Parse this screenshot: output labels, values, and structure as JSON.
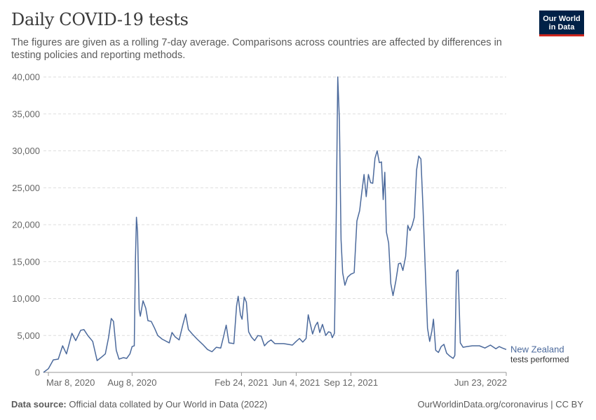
{
  "header": {
    "title": "Daily COVID-19 tests",
    "subtitle": "The figures are given as a rolling 7-day average. Comparisons across countries are affected by differences in testing policies and reporting methods."
  },
  "logo": {
    "line1": "Our World",
    "line2": "in Data"
  },
  "footer": {
    "source_label": "Data source:",
    "source_text": "Official data collated by Our World in Data (2022)",
    "right": "OurWorldinData.org/coronavirus | CC BY"
  },
  "colors": {
    "series": "#4c6a9c",
    "grid": "#dddddd",
    "axis": "#999999",
    "logo_bg": "#002147",
    "logo_accent": "#ce261e"
  },
  "chart_data": {
    "type": "line",
    "title": "Daily COVID-19 tests",
    "ylim": [
      0,
      40000
    ],
    "y_ticks": [
      0,
      5000,
      10000,
      15000,
      20000,
      25000,
      30000,
      35000,
      40000
    ],
    "y_tick_labels": [
      "0",
      "5,000",
      "10,000",
      "15,000",
      "20,000",
      "25,000",
      "30,000",
      "35,000",
      "40,000"
    ],
    "x_range": [
      "2020-02-28",
      "2022-06-23"
    ],
    "x_ticks": [
      {
        "date": "2020-03-08",
        "label": "Mar 8, 2020"
      },
      {
        "date": "2020-08-08",
        "label": "Aug 8, 2020"
      },
      {
        "date": "2021-02-24",
        "label": "Feb 24, 2021"
      },
      {
        "date": "2021-06-04",
        "label": "Jun 4, 2021"
      },
      {
        "date": "2021-09-12",
        "label": "Sep 12, 2021"
      },
      {
        "date": "2022-06-23",
        "label": "Jun 23, 2022"
      }
    ],
    "grid": "horizontal-dashed",
    "series": [
      {
        "name": "New Zealand",
        "label_line2": "tests performed",
        "points": [
          [
            "2020-02-28",
            0
          ],
          [
            "2020-03-08",
            500
          ],
          [
            "2020-03-17",
            1700
          ],
          [
            "2020-03-26",
            1800
          ],
          [
            "2020-04-03",
            3600
          ],
          [
            "2020-04-10",
            2500
          ],
          [
            "2020-04-20",
            5300
          ],
          [
            "2020-04-27",
            4300
          ],
          [
            "2020-05-06",
            5700
          ],
          [
            "2020-05-12",
            5800
          ],
          [
            "2020-05-19",
            5000
          ],
          [
            "2020-05-28",
            4200
          ],
          [
            "2020-06-05",
            1600
          ],
          [
            "2020-06-12",
            2000
          ],
          [
            "2020-06-20",
            2500
          ],
          [
            "2020-06-26",
            4700
          ],
          [
            "2020-07-01",
            7300
          ],
          [
            "2020-07-05",
            6900
          ],
          [
            "2020-07-10",
            3000
          ],
          [
            "2020-07-15",
            1800
          ],
          [
            "2020-07-23",
            2000
          ],
          [
            "2020-07-29",
            1900
          ],
          [
            "2020-08-04",
            2500
          ],
          [
            "2020-08-08",
            3500
          ],
          [
            "2020-08-12",
            3600
          ],
          [
            "2020-08-14",
            15000
          ],
          [
            "2020-08-16",
            21000
          ],
          [
            "2020-08-18",
            19000
          ],
          [
            "2020-08-21",
            8500
          ],
          [
            "2020-08-23",
            7600
          ],
          [
            "2020-08-28",
            9700
          ],
          [
            "2020-09-02",
            8700
          ],
          [
            "2020-09-06",
            7000
          ],
          [
            "2020-09-12",
            6900
          ],
          [
            "2020-09-18",
            6000
          ],
          [
            "2020-09-24",
            5000
          ],
          [
            "2020-10-02",
            4500
          ],
          [
            "2020-10-15",
            4000
          ],
          [
            "2020-10-20",
            5400
          ],
          [
            "2020-10-26",
            4800
          ],
          [
            "2020-11-02",
            4400
          ],
          [
            "2020-11-09",
            6500
          ],
          [
            "2020-11-14",
            7900
          ],
          [
            "2020-11-19",
            5800
          ],
          [
            "2020-11-26",
            5200
          ],
          [
            "2020-12-05",
            4500
          ],
          [
            "2020-12-15",
            3800
          ],
          [
            "2020-12-24",
            3100
          ],
          [
            "2021-01-01",
            2800
          ],
          [
            "2021-01-09",
            3400
          ],
          [
            "2021-01-17",
            3300
          ],
          [
            "2021-01-22",
            4800
          ],
          [
            "2021-01-27",
            6400
          ],
          [
            "2021-02-01",
            4000
          ],
          [
            "2021-02-10",
            3900
          ],
          [
            "2021-02-15",
            9000
          ],
          [
            "2021-02-18",
            10300
          ],
          [
            "2021-02-22",
            7800
          ],
          [
            "2021-02-25",
            7200
          ],
          [
            "2021-03-01",
            10200
          ],
          [
            "2021-03-05",
            9500
          ],
          [
            "2021-03-09",
            5500
          ],
          [
            "2021-03-14",
            4800
          ],
          [
            "2021-03-20",
            4300
          ],
          [
            "2021-03-26",
            5000
          ],
          [
            "2021-04-01",
            4900
          ],
          [
            "2021-04-07",
            3600
          ],
          [
            "2021-04-13",
            4100
          ],
          [
            "2021-04-19",
            4400
          ],
          [
            "2021-04-26",
            3900
          ],
          [
            "2021-05-04",
            3900
          ],
          [
            "2021-05-12",
            3900
          ],
          [
            "2021-05-20",
            3800
          ],
          [
            "2021-05-28",
            3700
          ],
          [
            "2021-06-04",
            4200
          ],
          [
            "2021-06-10",
            4600
          ],
          [
            "2021-06-16",
            4100
          ],
          [
            "2021-06-22",
            4600
          ],
          [
            "2021-06-26",
            7800
          ],
          [
            "2021-06-30",
            6500
          ],
          [
            "2021-07-04",
            5200
          ],
          [
            "2021-07-09",
            6300
          ],
          [
            "2021-07-13",
            6800
          ],
          [
            "2021-07-17",
            5400
          ],
          [
            "2021-07-22",
            6500
          ],
          [
            "2021-07-28",
            5000
          ],
          [
            "2021-08-02",
            5500
          ],
          [
            "2021-08-06",
            5400
          ],
          [
            "2021-08-09",
            4700
          ],
          [
            "2021-08-13",
            5300
          ],
          [
            "2021-08-16",
            20000
          ],
          [
            "2021-08-19",
            40000
          ],
          [
            "2021-08-22",
            34000
          ],
          [
            "2021-08-25",
            18000
          ],
          [
            "2021-08-28",
            13500
          ],
          [
            "2021-09-01",
            11800
          ],
          [
            "2021-09-06",
            12900
          ],
          [
            "2021-09-12",
            13300
          ],
          [
            "2021-09-18",
            13500
          ],
          [
            "2021-09-23",
            20500
          ],
          [
            "2021-09-28",
            21900
          ],
          [
            "2021-10-02",
            24400
          ],
          [
            "2021-10-06",
            26800
          ],
          [
            "2021-10-10",
            23800
          ],
          [
            "2021-10-14",
            26800
          ],
          [
            "2021-10-18",
            25700
          ],
          [
            "2021-10-22",
            25600
          ],
          [
            "2021-10-26",
            29000
          ],
          [
            "2021-10-30",
            30000
          ],
          [
            "2021-11-03",
            28400
          ],
          [
            "2021-11-07",
            28500
          ],
          [
            "2021-11-10",
            23400
          ],
          [
            "2021-11-13",
            27100
          ],
          [
            "2021-11-16",
            19000
          ],
          [
            "2021-11-20",
            17500
          ],
          [
            "2021-11-24",
            12000
          ],
          [
            "2021-11-28",
            10400
          ],
          [
            "2021-12-03",
            12300
          ],
          [
            "2021-12-08",
            14700
          ],
          [
            "2021-12-12",
            14800
          ],
          [
            "2021-12-16",
            13800
          ],
          [
            "2021-12-21",
            15700
          ],
          [
            "2021-12-25",
            19900
          ],
          [
            "2021-12-29",
            19200
          ],
          [
            "2022-01-02",
            19900
          ],
          [
            "2022-01-06",
            21000
          ],
          [
            "2022-01-10",
            27400
          ],
          [
            "2022-01-14",
            29300
          ],
          [
            "2022-01-18",
            28900
          ],
          [
            "2022-01-22",
            22000
          ],
          [
            "2022-01-26",
            14000
          ],
          [
            "2022-01-30",
            6000
          ],
          [
            "2022-02-03",
            4200
          ],
          [
            "2022-02-07",
            5600
          ],
          [
            "2022-02-10",
            7200
          ],
          [
            "2022-02-14",
            3000
          ],
          [
            "2022-02-19",
            2700
          ],
          [
            "2022-02-24",
            3500
          ],
          [
            "2022-03-01",
            3800
          ],
          [
            "2022-03-06",
            2600
          ],
          [
            "2022-03-12",
            2200
          ],
          [
            "2022-03-18",
            1900
          ],
          [
            "2022-03-21",
            2300
          ],
          [
            "2022-03-24",
            13600
          ],
          [
            "2022-03-27",
            13900
          ],
          [
            "2022-03-31",
            4000
          ],
          [
            "2022-04-05",
            3400
          ],
          [
            "2022-04-12",
            3500
          ],
          [
            "2022-04-22",
            3600
          ],
          [
            "2022-05-05",
            3600
          ],
          [
            "2022-05-15",
            3300
          ],
          [
            "2022-05-25",
            3700
          ],
          [
            "2022-06-04",
            3200
          ],
          [
            "2022-06-10",
            3500
          ],
          [
            "2022-06-16",
            3300
          ],
          [
            "2022-06-23",
            3100
          ]
        ]
      }
    ]
  }
}
